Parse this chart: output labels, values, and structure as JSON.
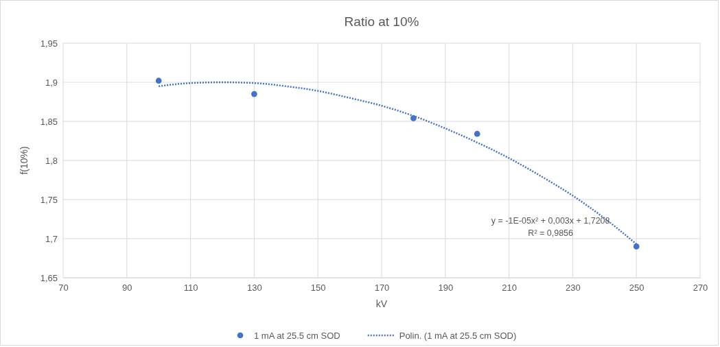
{
  "chart_data": {
    "type": "scatter",
    "title": "Ratio at 10%",
    "xlabel": "kV",
    "ylabel": "f(10%)",
    "xlim": [
      70,
      270
    ],
    "xticks": [
      70,
      90,
      110,
      130,
      150,
      170,
      190,
      210,
      230,
      250,
      270
    ],
    "ylim": [
      1.65,
      1.95
    ],
    "yticks": [
      {
        "value": 1.65,
        "label": "1,65"
      },
      {
        "value": 1.7,
        "label": "1,7"
      },
      {
        "value": 1.75,
        "label": "1,75"
      },
      {
        "value": 1.8,
        "label": "1,8"
      },
      {
        "value": 1.85,
        "label": "1,85"
      },
      {
        "value": 1.9,
        "label": "1,9"
      },
      {
        "value": 1.95,
        "label": "1,95"
      }
    ],
    "grid": true,
    "legend": "bottom",
    "series": [
      {
        "name": "1 mA at 25.5 cm SOD",
        "marker": "circle",
        "color": "#4472c4",
        "x": [
          100,
          130,
          180,
          200,
          250
        ],
        "values": [
          1.902,
          1.885,
          1.854,
          1.834,
          1.69
        ]
      },
      {
        "name": "Polin. (1 mA at 25.5 cm SOD)",
        "type": "line",
        "line_style": "dotted",
        "marker": "none",
        "color": "#4472c4",
        "x": [
          100,
          110,
          120,
          130,
          140,
          150,
          160,
          170,
          180,
          190,
          200,
          210,
          220,
          230,
          240,
          250
        ],
        "values": [
          1.895,
          1.899,
          1.9,
          1.899,
          1.895,
          1.889,
          1.88,
          1.87,
          1.857,
          1.841,
          1.823,
          1.803,
          1.78,
          1.755,
          1.726,
          1.693
        ]
      }
    ],
    "annotations": [
      "y = -1E-05x² + 0,003x + 1,7208",
      "R² = 0,9856"
    ]
  }
}
